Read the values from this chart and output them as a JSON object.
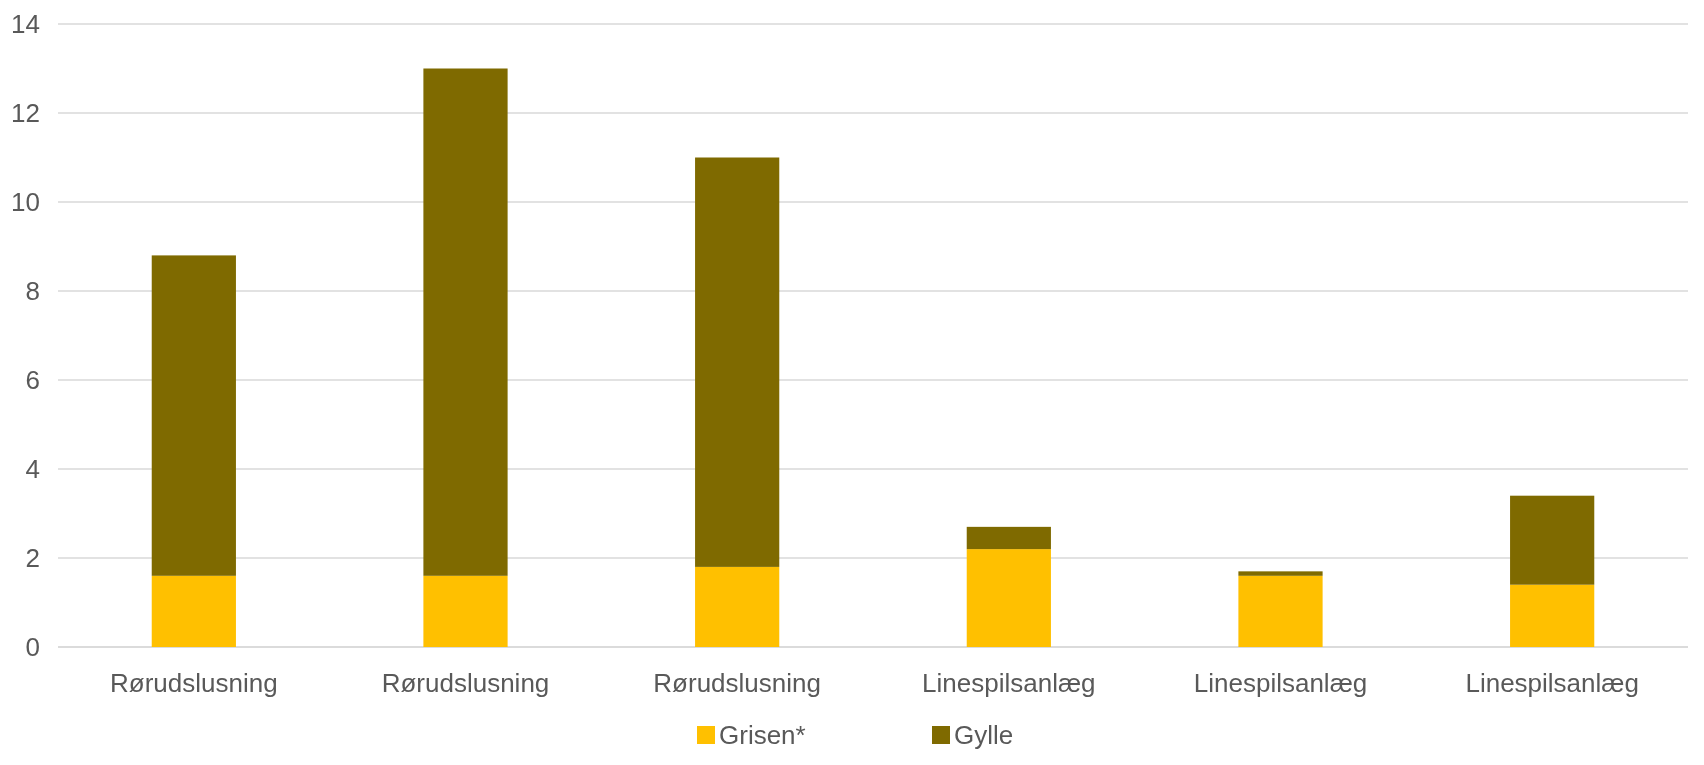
{
  "chart_data": {
    "type": "bar",
    "stacked": true,
    "categories": [
      "Rørudslusning",
      "Rørudslusning",
      "Rørudslusning",
      "Linespilsanlæg",
      "Linespilsanlæg",
      "Linespilsanlæg"
    ],
    "series": [
      {
        "name": "Grisen*",
        "color": "#ffc000",
        "values": [
          1.6,
          1.6,
          1.8,
          2.2,
          1.6,
          1.4
        ]
      },
      {
        "name": "Gylle",
        "color": "#7f6a00",
        "values": [
          7.2,
          11.4,
          9.2,
          0.5,
          0.1,
          2.0
        ]
      }
    ],
    "ylim": [
      0,
      14
    ],
    "yticks": [
      0,
      2,
      4,
      6,
      8,
      10,
      12,
      14
    ],
    "grid": "y",
    "legend": "bottom"
  }
}
